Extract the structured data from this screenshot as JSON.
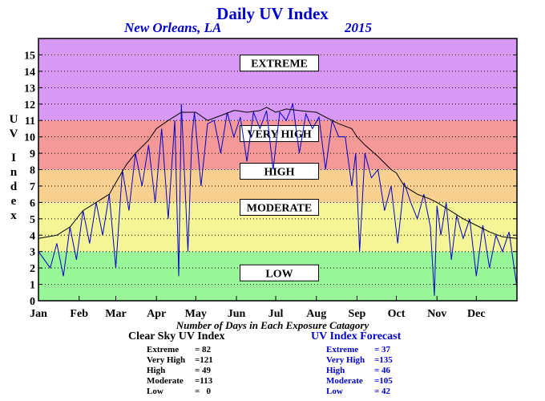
{
  "chart_data": {
    "type": "line",
    "title": "Daily UV Index",
    "subtitle_location": "New Orleans, LA",
    "subtitle_year": "2015",
    "ylabel": "UV Index",
    "ylim": [
      0,
      15
    ],
    "yticks": [
      "0",
      "1",
      "2",
      "3",
      "4",
      "5",
      "6",
      "7",
      "8",
      "9",
      "10",
      "11",
      "12",
      "13",
      "14",
      "15"
    ],
    "xlim": [
      1,
      366
    ],
    "months": [
      {
        "label": "Jan",
        "day": 1
      },
      {
        "label": "Feb",
        "day": 32
      },
      {
        "label": "Mar",
        "day": 60
      },
      {
        "label": "Apr",
        "day": 91
      },
      {
        "label": "May",
        "day": 121
      },
      {
        "label": "Jun",
        "day": 152
      },
      {
        "label": "Jul",
        "day": 182
      },
      {
        "label": "Aug",
        "day": 213
      },
      {
        "label": "Sep",
        "day": 244
      },
      {
        "label": "Oct",
        "day": 274
      },
      {
        "label": "Nov",
        "day": 305
      },
      {
        "label": "Dec",
        "day": 335
      }
    ],
    "bands": [
      {
        "label": "LOW",
        "from": 0,
        "to": 3,
        "color": "#98f598",
        "label_y": 1.7
      },
      {
        "label": "MODERATE",
        "from": 3,
        "to": 6,
        "color": "#f5f598",
        "label_y": 5.7
      },
      {
        "label": "HIGH",
        "from": 6,
        "to": 8,
        "color": "#fad090",
        "label_y": 7.9
      },
      {
        "label": "VERY HIGH",
        "from": 8,
        "to": 11,
        "color": "#f59898",
        "label_y": 10.2
      },
      {
        "label": "EXTREME",
        "from": 11,
        "to": 16,
        "color": "#d898f5",
        "label_y": 14.5
      }
    ],
    "grid": true,
    "series": [
      {
        "name": "Clear Sky UV Index",
        "color": "#000000",
        "x": [
          1,
          15,
          25,
          35,
          45,
          55,
          60,
          68,
          75,
          85,
          91,
          100,
          110,
          121,
          130,
          140,
          150,
          152,
          160,
          170,
          175,
          182,
          190,
          200,
          213,
          220,
          230,
          240,
          244,
          250,
          260,
          270,
          274,
          280,
          290,
          300,
          305,
          315,
          325,
          335,
          345,
          355,
          366
        ],
        "y": [
          3.8,
          4.0,
          4.5,
          5.5,
          6.0,
          6.5,
          7.2,
          8.3,
          9.0,
          9.8,
          10.5,
          11.0,
          11.5,
          11.5,
          11.0,
          11.3,
          11.6,
          11.6,
          11.5,
          11.6,
          11.8,
          11.5,
          11.7,
          11.6,
          11.5,
          11.2,
          10.8,
          10.5,
          10.0,
          9.5,
          8.8,
          8.0,
          7.8,
          7.0,
          6.5,
          6.2,
          6.0,
          5.5,
          5.0,
          4.6,
          4.2,
          3.9,
          3.8
        ]
      },
      {
        "name": "UV Index Forecast",
        "color": "#0000cc",
        "x": [
          1,
          10,
          15,
          20,
          25,
          30,
          35,
          40,
          45,
          50,
          55,
          60,
          65,
          70,
          75,
          80,
          85,
          90,
          95,
          100,
          105,
          108,
          110,
          115,
          118,
          120,
          125,
          130,
          135,
          140,
          145,
          150,
          155,
          160,
          165,
          170,
          175,
          180,
          185,
          190,
          195,
          200,
          205,
          210,
          215,
          220,
          225,
          230,
          235,
          240,
          243,
          246,
          250,
          255,
          260,
          265,
          270,
          275,
          280,
          285,
          290,
          295,
          300,
          303,
          305,
          308,
          312,
          316,
          320,
          325,
          330,
          335,
          340,
          345,
          350,
          355,
          360,
          366
        ],
        "y": [
          3.0,
          2.0,
          3.5,
          1.5,
          4.5,
          2.5,
          5.5,
          3.5,
          6.0,
          4.0,
          6.5,
          2.0,
          8.0,
          5.5,
          9.0,
          7.0,
          9.5,
          6.0,
          10.5,
          5.0,
          11.0,
          1.5,
          12.0,
          3.0,
          10.0,
          11.5,
          7.0,
          10.8,
          11.0,
          9.0,
          11.5,
          10.0,
          11.2,
          8.5,
          11.5,
          10.5,
          11.6,
          8.0,
          11.5,
          11.0,
          12.0,
          9.0,
          11.4,
          10.5,
          11.2,
          8.0,
          11.0,
          10.0,
          10.0,
          7.0,
          9.0,
          3.0,
          9.0,
          7.5,
          8.0,
          5.5,
          7.0,
          3.5,
          7.2,
          6.0,
          5.0,
          6.5,
          4.5,
          0.3,
          5.8,
          4.0,
          6.0,
          2.5,
          5.2,
          3.8,
          5.0,
          1.5,
          4.6,
          2.0,
          4.0,
          3.0,
          4.2,
          0.8
        ]
      }
    ]
  },
  "summary": {
    "title": "Number of Days in Each Exposure Catagory",
    "clear_sky": {
      "heading": "Clear Sky UV Index",
      "rows": [
        {
          "label": "Extreme",
          "value": "= 82"
        },
        {
          "label": "Very High",
          "value": "=121"
        },
        {
          "label": "High",
          "value": "= 49"
        },
        {
          "label": "Moderate",
          "value": "=113"
        },
        {
          "label": "Low",
          "value": "=   0"
        }
      ]
    },
    "forecast": {
      "heading": "UV Index Forecast",
      "rows": [
        {
          "label": "Extreme",
          "value": "= 37"
        },
        {
          "label": "Very High",
          "value": "=135"
        },
        {
          "label": "High",
          "value": "= 46"
        },
        {
          "label": "Moderate",
          "value": "=105"
        },
        {
          "label": "Low",
          "value": "= 42"
        }
      ]
    }
  }
}
